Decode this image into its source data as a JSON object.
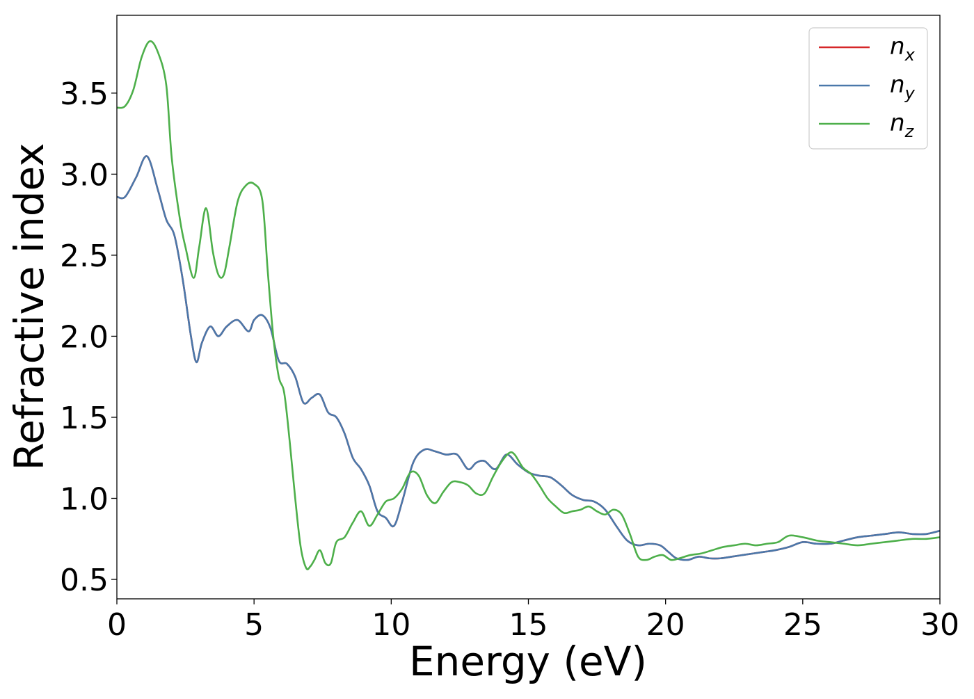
{
  "chart_data": {
    "type": "line",
    "title": "",
    "xlabel": "Energy (eV)",
    "ylabel": "Refractive index",
    "xlim": [
      0,
      30
    ],
    "ylim": [
      0.38,
      3.98
    ],
    "xticks": [
      0,
      5,
      10,
      15,
      20,
      25,
      30
    ],
    "xtick_labels": [
      "0",
      "5",
      "10",
      "15",
      "20",
      "25",
      "30"
    ],
    "yticks": [
      0.5,
      1.0,
      1.5,
      2.0,
      2.5,
      3.0,
      3.5
    ],
    "ytick_labels": [
      "0.5",
      "1.0",
      "1.5",
      "2.0",
      "2.5",
      "3.0",
      "3.5"
    ],
    "grid": false,
    "legend_position": "top-right",
    "series": [
      {
        "name": "n_x",
        "label_base": "n",
        "label_sub": "x",
        "color": "#d62728",
        "x": [
          0,
          0.3,
          0.7,
          1.1,
          1.5,
          1.8,
          2.1,
          2.4,
          2.7,
          2.9,
          3.1,
          3.4,
          3.7,
          4.0,
          4.4,
          4.8,
          5.0,
          5.3,
          5.6,
          5.9,
          6.2,
          6.5,
          6.8,
          7.1,
          7.4,
          7.7,
          8.0,
          8.3,
          8.6,
          8.9,
          9.2,
          9.5,
          9.8,
          10.1,
          10.4,
          10.8,
          11.2,
          11.6,
          12.0,
          12.4,
          12.8,
          13.1,
          13.4,
          13.8,
          14.2,
          14.6,
          15.0,
          15.4,
          15.8,
          16.2,
          16.6,
          17.0,
          17.4,
          17.8,
          18.2,
          18.6,
          19.0,
          19.4,
          19.8,
          20.1,
          20.4,
          20.8,
          21.2,
          21.6,
          22.0,
          22.4,
          22.8,
          23.2,
          23.6,
          24.0,
          24.5,
          25.0,
          25.5,
          26.0,
          26.5,
          27.0,
          27.5,
          28.0,
          28.5,
          29.0,
          29.5,
          30.0
        ],
        "y": [
          2.86,
          2.86,
          2.98,
          3.11,
          2.9,
          2.72,
          2.62,
          2.35,
          2.0,
          1.84,
          1.96,
          2.06,
          2.0,
          2.06,
          2.1,
          2.03,
          2.1,
          2.13,
          2.05,
          1.85,
          1.83,
          1.75,
          1.59,
          1.62,
          1.64,
          1.53,
          1.5,
          1.4,
          1.25,
          1.18,
          1.08,
          0.92,
          0.88,
          0.83,
          0.98,
          1.22,
          1.3,
          1.29,
          1.27,
          1.27,
          1.18,
          1.22,
          1.23,
          1.18,
          1.27,
          1.21,
          1.16,
          1.14,
          1.13,
          1.08,
          1.02,
          0.99,
          0.98,
          0.93,
          0.83,
          0.74,
          0.71,
          0.72,
          0.71,
          0.67,
          0.63,
          0.62,
          0.64,
          0.63,
          0.63,
          0.64,
          0.65,
          0.66,
          0.67,
          0.68,
          0.7,
          0.73,
          0.72,
          0.72,
          0.74,
          0.76,
          0.77,
          0.78,
          0.79,
          0.78,
          0.78,
          0.8
        ]
      },
      {
        "name": "n_y",
        "label_base": "n",
        "label_sub": "y",
        "color": "#4a78aa",
        "x": [
          0,
          0.3,
          0.7,
          1.1,
          1.5,
          1.8,
          2.1,
          2.4,
          2.7,
          2.9,
          3.1,
          3.4,
          3.7,
          4.0,
          4.4,
          4.8,
          5.0,
          5.3,
          5.6,
          5.9,
          6.2,
          6.5,
          6.8,
          7.1,
          7.4,
          7.7,
          8.0,
          8.3,
          8.6,
          8.9,
          9.2,
          9.5,
          9.8,
          10.1,
          10.4,
          10.8,
          11.2,
          11.6,
          12.0,
          12.4,
          12.8,
          13.1,
          13.4,
          13.8,
          14.2,
          14.6,
          15.0,
          15.4,
          15.8,
          16.2,
          16.6,
          17.0,
          17.4,
          17.8,
          18.2,
          18.6,
          19.0,
          19.4,
          19.8,
          20.1,
          20.4,
          20.8,
          21.2,
          21.6,
          22.0,
          22.4,
          22.8,
          23.2,
          23.6,
          24.0,
          24.5,
          25.0,
          25.5,
          26.0,
          26.5,
          27.0,
          27.5,
          28.0,
          28.5,
          29.0,
          29.5,
          30.0
        ],
        "y": [
          2.86,
          2.86,
          2.98,
          3.11,
          2.9,
          2.72,
          2.62,
          2.35,
          2.0,
          1.84,
          1.96,
          2.06,
          2.0,
          2.06,
          2.1,
          2.03,
          2.1,
          2.13,
          2.05,
          1.85,
          1.83,
          1.75,
          1.59,
          1.62,
          1.64,
          1.53,
          1.5,
          1.4,
          1.25,
          1.18,
          1.08,
          0.92,
          0.88,
          0.83,
          0.98,
          1.22,
          1.3,
          1.29,
          1.27,
          1.27,
          1.18,
          1.22,
          1.23,
          1.18,
          1.27,
          1.21,
          1.16,
          1.14,
          1.13,
          1.08,
          1.02,
          0.99,
          0.98,
          0.93,
          0.83,
          0.74,
          0.71,
          0.72,
          0.71,
          0.67,
          0.63,
          0.62,
          0.64,
          0.63,
          0.63,
          0.64,
          0.65,
          0.66,
          0.67,
          0.68,
          0.7,
          0.73,
          0.72,
          0.72,
          0.74,
          0.76,
          0.77,
          0.78,
          0.79,
          0.78,
          0.78,
          0.8
        ]
      },
      {
        "name": "n_z",
        "label_base": "n",
        "label_sub": "z",
        "color": "#4daf4a",
        "x": [
          0,
          0.3,
          0.6,
          0.9,
          1.2,
          1.5,
          1.8,
          2.0,
          2.3,
          2.5,
          2.8,
          3.0,
          3.25,
          3.5,
          3.7,
          3.9,
          4.1,
          4.4,
          4.7,
          5.0,
          5.3,
          5.5,
          5.7,
          5.9,
          6.1,
          6.3,
          6.5,
          6.7,
          6.9,
          7.05,
          7.2,
          7.4,
          7.6,
          7.8,
          8.0,
          8.3,
          8.6,
          8.9,
          9.2,
          9.5,
          9.8,
          10.1,
          10.4,
          10.7,
          11.0,
          11.3,
          11.6,
          11.9,
          12.2,
          12.5,
          12.8,
          13.1,
          13.4,
          13.7,
          14.0,
          14.3,
          14.5,
          14.8,
          15.1,
          15.4,
          15.7,
          16.0,
          16.3,
          16.6,
          16.9,
          17.2,
          17.5,
          17.8,
          18.1,
          18.4,
          18.7,
          19.0,
          19.3,
          19.6,
          19.9,
          20.2,
          20.5,
          20.9,
          21.3,
          21.7,
          22.1,
          22.5,
          22.9,
          23.3,
          23.7,
          24.1,
          24.5,
          25.0,
          25.5,
          26.0,
          26.5,
          27.0,
          27.5,
          28.0,
          28.5,
          29.0,
          29.5,
          30.0
        ],
        "y": [
          3.41,
          3.42,
          3.52,
          3.72,
          3.82,
          3.75,
          3.55,
          3.1,
          2.72,
          2.55,
          2.36,
          2.55,
          2.79,
          2.52,
          2.38,
          2.38,
          2.55,
          2.83,
          2.93,
          2.94,
          2.84,
          2.4,
          2.0,
          1.75,
          1.65,
          1.35,
          1.0,
          0.7,
          0.57,
          0.58,
          0.62,
          0.68,
          0.6,
          0.6,
          0.73,
          0.76,
          0.85,
          0.92,
          0.83,
          0.9,
          0.98,
          1.0,
          1.06,
          1.16,
          1.14,
          1.02,
          0.97,
          1.04,
          1.1,
          1.1,
          1.08,
          1.03,
          1.03,
          1.13,
          1.22,
          1.28,
          1.27,
          1.19,
          1.15,
          1.08,
          1.0,
          0.95,
          0.91,
          0.92,
          0.93,
          0.95,
          0.92,
          0.9,
          0.93,
          0.9,
          0.78,
          0.64,
          0.62,
          0.64,
          0.65,
          0.62,
          0.63,
          0.65,
          0.66,
          0.68,
          0.7,
          0.71,
          0.72,
          0.71,
          0.72,
          0.73,
          0.77,
          0.76,
          0.74,
          0.73,
          0.72,
          0.71,
          0.72,
          0.73,
          0.74,
          0.75,
          0.75,
          0.76
        ]
      }
    ]
  }
}
